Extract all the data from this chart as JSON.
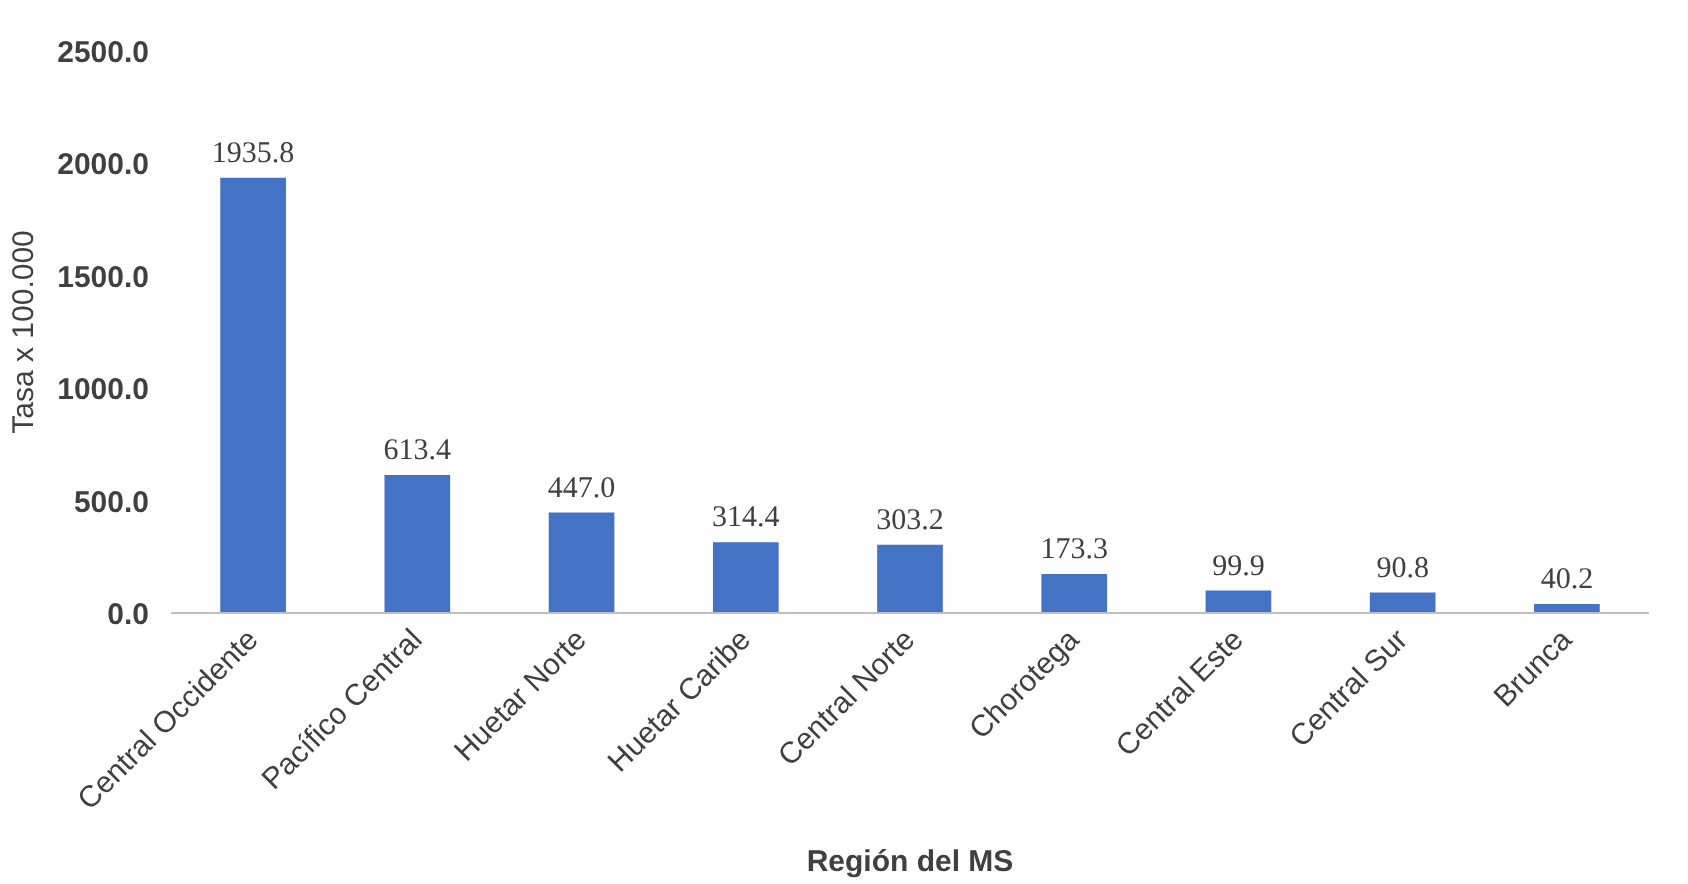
{
  "chart_data": {
    "type": "bar",
    "xlabel": "Región del MS",
    "ylabel": "Tasa x 100.000",
    "categories": [
      "Central Occidente",
      "Pacífico Central",
      "Huetar Norte",
      "Huetar Caribe",
      "Central Norte",
      "Chorotega",
      "Central Este",
      "Central Sur",
      "Brunca"
    ],
    "values": [
      1935.8,
      613.4,
      447.0,
      314.4,
      303.2,
      173.3,
      99.9,
      90.8,
      40.2
    ],
    "value_labels": [
      "1935.8",
      "613.4",
      "447.0",
      "314.4",
      "303.2",
      "173.3",
      "99.9",
      "90.8",
      "40.2"
    ],
    "color": "#4472c4",
    "ylim": [
      0,
      2500
    ],
    "yticks": [
      {
        "value": 0,
        "label": "0.0"
      },
      {
        "value": 500,
        "label": "500.0"
      },
      {
        "value": 1000,
        "label": "1000.0"
      },
      {
        "value": 1500,
        "label": "1500.0"
      },
      {
        "value": 2000,
        "label": "2000.0"
      },
      {
        "value": 2500,
        "label": "2500.0"
      }
    ],
    "grid": false
  }
}
